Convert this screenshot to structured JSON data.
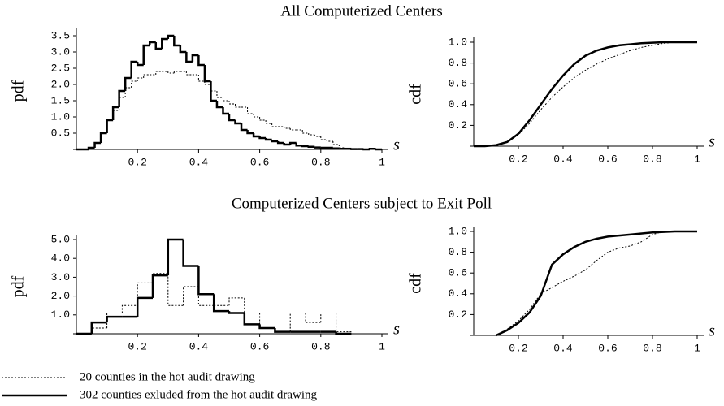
{
  "chart_data": [
    {
      "type": "histogram",
      "title": "All Computerized Centers",
      "xlabel": "s",
      "ylabel": "pdf",
      "bins": [
        0,
        0.02,
        0.04,
        0.06,
        0.08,
        0.1,
        0.12,
        0.14,
        0.16,
        0.18,
        0.2,
        0.22,
        0.24,
        0.26,
        0.28,
        0.3,
        0.32,
        0.34,
        0.36,
        0.38,
        0.4,
        0.42,
        0.44,
        0.46,
        0.48,
        0.5,
        0.52,
        0.54,
        0.56,
        0.58,
        0.6,
        0.62,
        0.64,
        0.66,
        0.68,
        0.7,
        0.72,
        0.74,
        0.76,
        0.78,
        0.8,
        0.82,
        0.84,
        0.86,
        0.88,
        0.9,
        0.92,
        0.94,
        0.96,
        0.98,
        1
      ],
      "series": [
        {
          "name": "20 counties in the hot audit drawing",
          "color": "#000000",
          "style": "dotted",
          "values": [
            0,
            0,
            0.05,
            0.2,
            0.5,
            0.9,
            1.2,
            1.6,
            1.9,
            2.1,
            2.2,
            2.3,
            2.3,
            2.4,
            2.4,
            2.35,
            2.4,
            2.4,
            2.3,
            2.3,
            2.1,
            2.0,
            1.8,
            1.6,
            1.5,
            1.4,
            1.3,
            1.3,
            1.1,
            1.0,
            0.9,
            0.8,
            0.7,
            0.7,
            0.65,
            0.6,
            0.6,
            0.5,
            0.45,
            0.4,
            0.3,
            0.25,
            0.15,
            0.05,
            0.02,
            0,
            0,
            0,
            0,
            0
          ]
        },
        {
          "name": "302 counties exluded from the hot audit drawing",
          "color": "#000000",
          "style": "solid",
          "values": [
            0,
            0,
            0.05,
            0.2,
            0.5,
            0.9,
            1.3,
            1.8,
            2.2,
            2.7,
            2.6,
            3.2,
            3.3,
            3.1,
            3.4,
            3.5,
            3.2,
            3.0,
            2.7,
            2.9,
            2.6,
            2.1,
            1.5,
            1.3,
            1.1,
            0.9,
            0.8,
            0.6,
            0.5,
            0.4,
            0.35,
            0.3,
            0.25,
            0.2,
            0.15,
            0.2,
            0.12,
            0.1,
            0.08,
            0.06,
            0.05,
            0.05,
            0.03,
            0.02,
            0.02,
            0.01,
            0.01,
            0,
            0.02,
            0
          ]
        }
      ],
      "xlim": [
        0,
        1
      ],
      "xticks": [
        0.2,
        0.4,
        0.6,
        0.8,
        1
      ],
      "ylim": [
        0,
        3.6
      ],
      "yticks": [
        0.5,
        {
          "value": 1,
          "label": "1.0"
        },
        1.5,
        {
          "value": 2,
          "label": "2.0"
        },
        2.5,
        {
          "value": 3,
          "label": "3.0"
        },
        3.5
      ]
    },
    {
      "type": "line",
      "xlabel": "s",
      "ylabel": "cdf",
      "x": [
        0,
        0.05,
        0.1,
        0.15,
        0.2,
        0.25,
        0.3,
        0.35,
        0.4,
        0.45,
        0.5,
        0.55,
        0.6,
        0.65,
        0.7,
        0.75,
        0.8,
        0.85,
        0.9,
        0.95,
        1
      ],
      "series": [
        {
          "color": "#000000",
          "style": "dotted",
          "values": [
            0,
            0,
            0.01,
            0.04,
            0.11,
            0.22,
            0.35,
            0.47,
            0.57,
            0.66,
            0.73,
            0.79,
            0.84,
            0.88,
            0.92,
            0.95,
            0.97,
            0.99,
            1,
            1,
            1
          ]
        },
        {
          "color": "#000000",
          "style": "solid",
          "values": [
            0,
            0,
            0.01,
            0.04,
            0.12,
            0.25,
            0.4,
            0.55,
            0.68,
            0.79,
            0.87,
            0.92,
            0.95,
            0.97,
            0.98,
            0.99,
            0.995,
            1,
            1,
            1,
            1
          ]
        }
      ],
      "xlim": [
        0,
        1
      ],
      "xticks": [
        0.2,
        0.4,
        0.6,
        0.8,
        1
      ],
      "ylim": [
        0,
        1
      ],
      "yticks": [
        0.2,
        0.4,
        0.6,
        0.8,
        {
          "value": 1,
          "label": "1.0"
        }
      ]
    },
    {
      "type": "histogram",
      "title": "Computerized Centers subject to Exit Poll",
      "xlabel": "s",
      "ylabel": "pdf",
      "bins": [
        0,
        0.05,
        0.1,
        0.15,
        0.2,
        0.25,
        0.3,
        0.35,
        0.4,
        0.45,
        0.5,
        0.55,
        0.6,
        0.65,
        0.7,
        0.75,
        0.8,
        0.85,
        0.9
      ],
      "series": [
        {
          "color": "#000000",
          "style": "dotted",
          "values": [
            0,
            0.3,
            1.1,
            1.5,
            2.7,
            3.2,
            1.5,
            2.5,
            1.5,
            1.5,
            1.9,
            1.1,
            0.3,
            0.1,
            1.1,
            0.6,
            1.1,
            0.1
          ]
        },
        {
          "color": "#000000",
          "style": "solid",
          "values": [
            0,
            0.6,
            0.9,
            0.9,
            1.9,
            3.1,
            5.0,
            3.6,
            2.1,
            1.2,
            1.1,
            0.5,
            0.3,
            0.1,
            0.1,
            0.1,
            0.1,
            0
          ]
        }
      ],
      "xlim": [
        0,
        1
      ],
      "xticks": [
        0.2,
        0.4,
        0.6,
        0.8,
        1
      ],
      "ylim": [
        0,
        5
      ],
      "yticks": [
        {
          "value": 1,
          "label": "1.0"
        },
        {
          "value": 2,
          "label": "2.0"
        },
        {
          "value": 3,
          "label": "3.0"
        },
        {
          "value": 4,
          "label": "4.0"
        },
        {
          "value": 5,
          "label": "5.0"
        }
      ]
    },
    {
      "type": "line",
      "xlabel": "s",
      "ylabel": "cdf",
      "series": [
        {
          "color": "#000000",
          "style": "dotted",
          "x": [
            0.1,
            0.15,
            0.2,
            0.25,
            0.3,
            0.35,
            0.4,
            0.45,
            0.5,
            0.55,
            0.6,
            0.65,
            0.7,
            0.75,
            0.8,
            0.85,
            0.9,
            1
          ],
          "values": [
            0,
            0.06,
            0.14,
            0.25,
            0.4,
            0.46,
            0.52,
            0.57,
            0.63,
            0.72,
            0.8,
            0.84,
            0.86,
            0.9,
            0.97,
            1,
            1,
            1
          ]
        },
        {
          "color": "#000000",
          "style": "solid",
          "x": [
            0.1,
            0.15,
            0.2,
            0.25,
            0.3,
            0.35,
            0.4,
            0.45,
            0.5,
            0.55,
            0.6,
            0.7,
            0.8,
            0.9,
            1
          ],
          "values": [
            0,
            0.05,
            0.12,
            0.22,
            0.38,
            0.68,
            0.78,
            0.85,
            0.9,
            0.93,
            0.95,
            0.97,
            0.99,
            1,
            1
          ]
        }
      ],
      "xlim": [
        0,
        1
      ],
      "xticks": [
        0.2,
        0.4,
        0.6,
        0.8,
        1
      ],
      "ylim": [
        0,
        1
      ],
      "yticks": [
        0.2,
        0.4,
        0.6,
        0.8,
        {
          "value": 1,
          "label": "1.0"
        }
      ]
    }
  ]
}
